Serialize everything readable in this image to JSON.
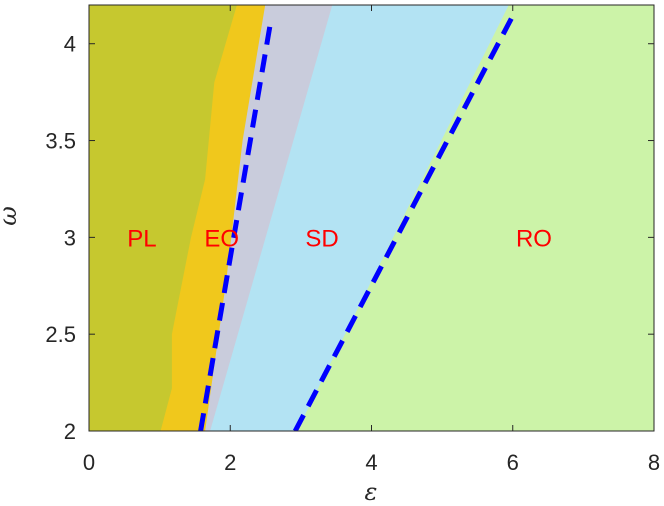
{
  "chart_data": {
    "type": "area",
    "title": "",
    "xlabel": "ε",
    "ylabel": "ω",
    "xlim": [
      0,
      8
    ],
    "ylim": [
      2,
      4.2
    ],
    "xticks": [
      0,
      2,
      4,
      6,
      8
    ],
    "yticks": [
      2,
      2.5,
      3,
      3.5,
      4
    ],
    "xtick_labels": [
      "0",
      "2",
      "4",
      "6",
      "8"
    ],
    "ytick_labels": [
      "2",
      "2.5",
      "3",
      "3.5",
      "4"
    ],
    "grid": false,
    "regions": [
      {
        "label": "PL",
        "color": "#c6c82f",
        "label_pos": [
          0.75,
          3.0
        ]
      },
      {
        "label": "EO",
        "color": "#f0c81c",
        "label_pos": [
          1.88,
          3.0
        ]
      },
      {
        "label": "",
        "color": "#c9ccdc"
      },
      {
        "label": "SD",
        "color": "#b3e3f3",
        "label_pos": [
          3.3,
          3.0
        ]
      },
      {
        "label": "RO",
        "color": "#ccf3a8",
        "label_pos": [
          6.3,
          3.0
        ]
      }
    ],
    "boundaries": {
      "pl_eo": [
        [
          1.02,
          2.0
        ],
        [
          1.18,
          2.22
        ],
        [
          1.18,
          2.5
        ],
        [
          1.45,
          3.0
        ],
        [
          1.65,
          3.3
        ],
        [
          1.78,
          3.8
        ],
        [
          2.1,
          4.2
        ]
      ],
      "eo_gray": [
        [
          1.65,
          2.0
        ],
        [
          1.95,
          2.78
        ],
        [
          2.18,
          3.5
        ],
        [
          2.5,
          4.2
        ]
      ],
      "gray_sd": [
        [
          1.72,
          2.0
        ],
        [
          3.45,
          4.2
        ]
      ],
      "sd_ro": [
        [
          2.95,
          2.0
        ],
        [
          5.95,
          4.2
        ]
      ]
    },
    "dashed_lines": [
      {
        "color": "#0000ff",
        "points": [
          [
            1.58,
            2.0
          ],
          [
            2.58,
            4.13
          ]
        ]
      },
      {
        "color": "#0000ff",
        "points": [
          [
            2.92,
            2.0
          ],
          [
            5.98,
            4.13
          ]
        ]
      }
    ]
  }
}
